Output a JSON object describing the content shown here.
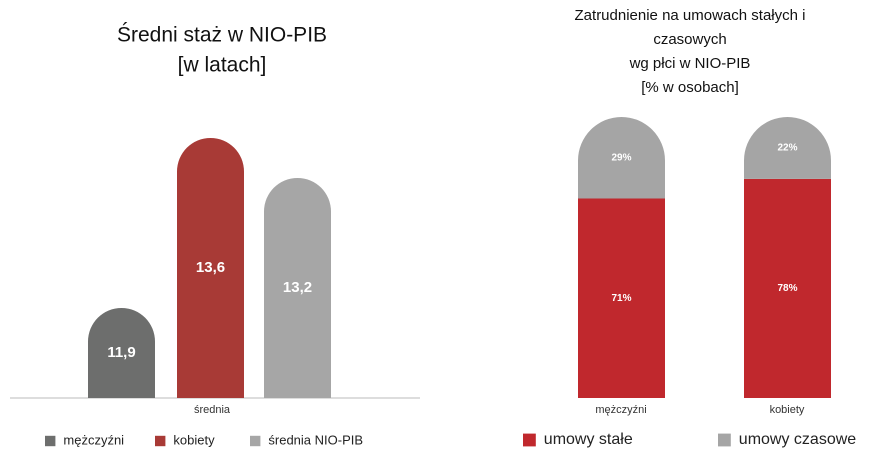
{
  "chart_data": [
    {
      "type": "bar",
      "title": [
        "Średni staż w NIO-PIB",
        "[w latach]"
      ],
      "categories": [
        "średnia"
      ],
      "series": [
        {
          "name": "mężczyźni",
          "color": "#6d6e6d",
          "values": [
            11.9
          ],
          "value_labels": [
            "11,9"
          ]
        },
        {
          "name": "kobiety",
          "color": "#a83a36",
          "values": [
            13.6
          ],
          "value_labels": [
            "13,6"
          ]
        },
        {
          "name": "średnia NIO-PIB",
          "color": "#a6a6a6",
          "values": [
            13.2
          ],
          "value_labels": [
            "13,2"
          ]
        }
      ],
      "ylim": [
        11,
        14
      ]
    },
    {
      "type": "stacked_bar",
      "title": [
        "Zatrudnienie na umowach stałych i",
        "czasowych",
        "wg płci w NIO-PIB",
        "[% w osobach]"
      ],
      "categories": [
        "mężczyźni",
        "kobiety"
      ],
      "series": [
        {
          "name": "umowy stałe",
          "color": "#c0282d",
          "values": [
            71,
            78
          ],
          "value_labels": [
            "71%",
            "78%"
          ]
        },
        {
          "name": "umowy czasowe",
          "color": "#a5a5a5",
          "values": [
            29,
            22
          ],
          "value_labels": [
            "29%",
            "22%"
          ]
        }
      ],
      "ylim": [
        0,
        100
      ]
    }
  ]
}
